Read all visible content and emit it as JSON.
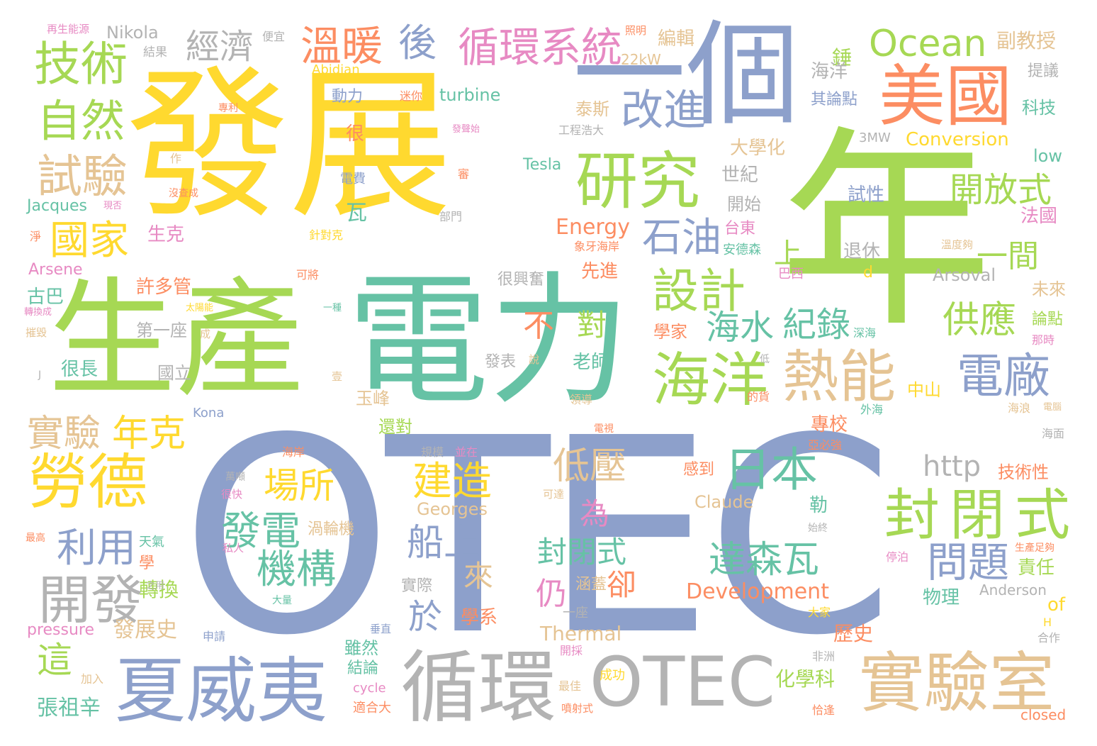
{
  "palette": {
    "yellow": "#ffd92f",
    "green": "#a6d854",
    "teal": "#66c2a5",
    "blue": "#8da0cb",
    "orange": "#fc8d62",
    "pink": "#e78ac3",
    "tan": "#e5c494",
    "gray": "#b3b3b3"
  },
  "words": [
    {
      "id": "w0",
      "text": "發展"
    },
    {
      "id": "w1",
      "text": "年"
    },
    {
      "id": "w2",
      "text": "生產"
    },
    {
      "id": "w3",
      "text": "電力"
    },
    {
      "id": "w4",
      "text": "OTEC"
    },
    {
      "id": "w5",
      "text": "一個"
    },
    {
      "id": "w6",
      "text": "夏威夷"
    },
    {
      "id": "w7",
      "text": "循環"
    },
    {
      "id": "w8",
      "text": "OTEC"
    },
    {
      "id": "w9",
      "text": "實驗室"
    },
    {
      "id": "w10",
      "text": "美國"
    },
    {
      "id": "w11",
      "text": "研究"
    },
    {
      "id": "w12",
      "text": "勞德"
    },
    {
      "id": "w13",
      "text": "開發"
    },
    {
      "id": "w14",
      "text": "海洋"
    },
    {
      "id": "w15",
      "text": "熱能"
    },
    {
      "id": "w16",
      "text": "封閉式"
    },
    {
      "id": "w17",
      "text": "技術"
    },
    {
      "id": "w18",
      "text": "自然"
    },
    {
      "id": "w19",
      "text": "試驗"
    },
    {
      "id": "w20",
      "text": "國家"
    },
    {
      "id": "w21",
      "text": "經濟"
    },
    {
      "id": "w22",
      "text": "溫暖"
    },
    {
      "id": "w23",
      "text": "後"
    },
    {
      "id": "w24",
      "text": "循環系統"
    },
    {
      "id": "w25",
      "text": "Ocean"
    },
    {
      "id": "w26",
      "text": "改進"
    },
    {
      "id": "w27",
      "text": "石油"
    },
    {
      "id": "w28",
      "text": "設計"
    },
    {
      "id": "w29",
      "text": "日本"
    },
    {
      "id": "w30",
      "text": "電廠"
    },
    {
      "id": "w31",
      "text": "開放式"
    },
    {
      "id": "w32",
      "text": "一間"
    },
    {
      "id": "w33",
      "text": "供應"
    },
    {
      "id": "w34",
      "text": "問題"
    },
    {
      "id": "w35",
      "text": "達森瓦"
    },
    {
      "id": "w36",
      "text": "海水"
    },
    {
      "id": "w37",
      "text": "紀錄"
    },
    {
      "id": "w38",
      "text": "實驗"
    },
    {
      "id": "w39",
      "text": "年克"
    },
    {
      "id": "w40",
      "text": "利用"
    },
    {
      "id": "w41",
      "text": "場所"
    },
    {
      "id": "w42",
      "text": "發電"
    },
    {
      "id": "w43",
      "text": "機構"
    },
    {
      "id": "w44",
      "text": "建造"
    },
    {
      "id": "w45",
      "text": "低壓"
    },
    {
      "id": "w46",
      "text": "船上"
    },
    {
      "id": "w47",
      "text": "封閉式"
    },
    {
      "id": "w48",
      "text": "http"
    },
    {
      "id": "w49",
      "text": "Development"
    },
    {
      "id": "w50",
      "text": "Energy"
    },
    {
      "id": "w51",
      "text": "Conversion"
    },
    {
      "id": "w52",
      "text": "turbine"
    },
    {
      "id": "w53",
      "text": "Nikola"
    },
    {
      "id": "w54",
      "text": "Tesla"
    },
    {
      "id": "w55",
      "text": "Jacques"
    },
    {
      "id": "w56",
      "text": "Arsene"
    },
    {
      "id": "w57",
      "text": "Arsoval"
    },
    {
      "id": "w58",
      "text": "Claude"
    },
    {
      "id": "w59",
      "text": "Georges"
    },
    {
      "id": "w60",
      "text": "Anderson"
    },
    {
      "id": "w61",
      "text": "Thermal"
    },
    {
      "id": "w62",
      "text": "pressure"
    },
    {
      "id": "w63",
      "text": "cycle"
    },
    {
      "id": "w64",
      "text": "closed"
    },
    {
      "id": "w65",
      "text": "Kona"
    },
    {
      "id": "w66",
      "text": "Abidjan"
    },
    {
      "id": "w67",
      "text": "22kW"
    },
    {
      "id": "w68",
      "text": "3MW"
    },
    {
      "id": "w69",
      "text": "low"
    },
    {
      "id": "w70",
      "text": "of"
    },
    {
      "id": "w71",
      "text": "d"
    },
    {
      "id": "w72",
      "text": "H"
    },
    {
      "id": "w73",
      "text": "再生能源"
    },
    {
      "id": "w74",
      "text": "結果"
    },
    {
      "id": "w75",
      "text": "便宜"
    },
    {
      "id": "w76",
      "text": "照明"
    },
    {
      "id": "w77",
      "text": "編輯"
    },
    {
      "id": "w78",
      "text": "錘"
    },
    {
      "id": "w79",
      "text": "副教授"
    },
    {
      "id": "w80",
      "text": "海洋"
    },
    {
      "id": "w81",
      "text": "提議"
    },
    {
      "id": "w82",
      "text": "動力"
    },
    {
      "id": "w83",
      "text": "迷你"
    },
    {
      "id": "w84",
      "text": "泰斯"
    },
    {
      "id": "w85",
      "text": "其論點"
    },
    {
      "id": "w86",
      "text": "科技"
    },
    {
      "id": "w87",
      "text": "專利"
    },
    {
      "id": "w88",
      "text": "很"
    },
    {
      "id": "w89",
      "text": "發聲始"
    },
    {
      "id": "w90",
      "text": "工程浩大"
    },
    {
      "id": "w91",
      "text": "作"
    },
    {
      "id": "w92",
      "text": "大學化"
    },
    {
      "id": "w93",
      "text": "世紀"
    },
    {
      "id": "w94",
      "text": "電費"
    },
    {
      "id": "w95",
      "text": "審"
    },
    {
      "id": "w96",
      "text": "開始"
    },
    {
      "id": "w97",
      "text": "試性"
    },
    {
      "id": "w98",
      "text": "法國"
    },
    {
      "id": "w99",
      "text": "沒查成"
    },
    {
      "id": "w100",
      "text": "現否"
    },
    {
      "id": "w101",
      "text": "部門"
    },
    {
      "id": "w102",
      "text": "台東"
    },
    {
      "id": "w103",
      "text": "瓦"
    },
    {
      "id": "w104",
      "text": "生克"
    },
    {
      "id": "w105",
      "text": "淨"
    },
    {
      "id": "w106",
      "text": "針對克"
    },
    {
      "id": "w107",
      "text": "象牙海岸"
    },
    {
      "id": "w108",
      "text": "安德森"
    },
    {
      "id": "w109",
      "text": "溫度夠"
    },
    {
      "id": "w110",
      "text": "上"
    },
    {
      "id": "w111",
      "text": "退休"
    },
    {
      "id": "w112",
      "text": "可將"
    },
    {
      "id": "w113",
      "text": "巴西"
    },
    {
      "id": "w114",
      "text": "先進"
    },
    {
      "id": "w115",
      "text": "很興奮"
    },
    {
      "id": "w116",
      "text": "許多管"
    },
    {
      "id": "w117",
      "text": "古巴"
    },
    {
      "id": "w118",
      "text": "太陽能"
    },
    {
      "id": "w119",
      "text": "一種"
    },
    {
      "id": "w120",
      "text": "未來"
    },
    {
      "id": "w121",
      "text": "轉換成"
    },
    {
      "id": "w122",
      "text": "不"
    },
    {
      "id": "w123",
      "text": "對"
    },
    {
      "id": "w124",
      "text": "學家"
    },
    {
      "id": "w125",
      "text": "論點"
    },
    {
      "id": "w126",
      "text": "摧毀"
    },
    {
      "id": "w127",
      "text": "第一座"
    },
    {
      "id": "w128",
      "text": "成"
    },
    {
      "id": "w129",
      "text": "深海"
    },
    {
      "id": "w130",
      "text": "那時"
    },
    {
      "id": "w131",
      "text": "很長"
    },
    {
      "id": "w132",
      "text": "國立"
    },
    {
      "id": "w133",
      "text": "發表"
    },
    {
      "id": "w134",
      "text": "說"
    },
    {
      "id": "w135",
      "text": "老師"
    },
    {
      "id": "w136",
      "text": "低"
    },
    {
      "id": "w137",
      "text": "J"
    },
    {
      "id": "w138",
      "text": "的貨"
    },
    {
      "id": "w139",
      "text": "壹"
    },
    {
      "id": "w140",
      "text": "中山"
    },
    {
      "id": "w141",
      "text": "玉峰"
    },
    {
      "id": "w142",
      "text": "領導"
    },
    {
      "id": "w143",
      "text": "外海"
    },
    {
      "id": "w144",
      "text": "海浪"
    },
    {
      "id": "w145",
      "text": "電腦"
    },
    {
      "id": "w146",
      "text": "專校"
    },
    {
      "id": "w147",
      "text": "還對"
    },
    {
      "id": "w148",
      "text": "電視"
    },
    {
      "id": "w149",
      "text": "海面"
    },
    {
      "id": "w150",
      "text": "亞必強"
    },
    {
      "id": "w151",
      "text": "規模"
    },
    {
      "id": "w152",
      "text": "並在"
    },
    {
      "id": "w153",
      "text": "海岸"
    },
    {
      "id": "w154",
      "text": "為"
    },
    {
      "id": "w155",
      "text": "感到"
    },
    {
      "id": "w156",
      "text": "技術性"
    },
    {
      "id": "w157",
      "text": "萬噸"
    },
    {
      "id": "w158",
      "text": "很快"
    },
    {
      "id": "w159",
      "text": "可達"
    },
    {
      "id": "w160",
      "text": "勒"
    },
    {
      "id": "w161",
      "text": "始終"
    },
    {
      "id": "w162",
      "text": "最高"
    },
    {
      "id": "w163",
      "text": "天氣"
    },
    {
      "id": "w164",
      "text": "渦輪機"
    },
    {
      "id": "w165",
      "text": "私人"
    },
    {
      "id": "w166",
      "text": "學"
    },
    {
      "id": "w167",
      "text": "停泊"
    },
    {
      "id": "w168",
      "text": "生產足夠"
    },
    {
      "id": "w169",
      "text": "來"
    },
    {
      "id": "w170",
      "text": "卻"
    },
    {
      "id": "w171",
      "text": "責任"
    },
    {
      "id": "w172",
      "text": "轉換"
    },
    {
      "id": "w173",
      "text": "之用"
    },
    {
      "id": "w174",
      "text": "實際"
    },
    {
      "id": "w175",
      "text": "涵蓋"
    },
    {
      "id": "w176",
      "text": "仍"
    },
    {
      "id": "w177",
      "text": "一座"
    },
    {
      "id": "w178",
      "text": "大量"
    },
    {
      "id": "w179",
      "text": "物理"
    },
    {
      "id": "w180",
      "text": "於"
    },
    {
      "id": "w181",
      "text": "學系"
    },
    {
      "id": "w182",
      "text": "發展史"
    },
    {
      "id": "w183",
      "text": "這"
    },
    {
      "id": "w184",
      "text": "加入"
    },
    {
      "id": "w185",
      "text": "申請"
    },
    {
      "id": "w186",
      "text": "垂直"
    },
    {
      "id": "w187",
      "text": "開採"
    },
    {
      "id": "w188",
      "text": "雖然"
    },
    {
      "id": "w189",
      "text": "結論"
    },
    {
      "id": "w190",
      "text": "適合大"
    },
    {
      "id": "w191",
      "text": "最佳"
    },
    {
      "id": "w192",
      "text": "成功"
    },
    {
      "id": "w193",
      "text": "噴射式"
    },
    {
      "id": "w194",
      "text": "大家"
    },
    {
      "id": "w195",
      "text": "非洲"
    },
    {
      "id": "w196",
      "text": "歷史"
    },
    {
      "id": "w197",
      "text": "化學科"
    },
    {
      "id": "w198",
      "text": "恰逢"
    },
    {
      "id": "w199",
      "text": "合作"
    },
    {
      "id": "w200",
      "text": "張祖辛"
    }
  ]
}
